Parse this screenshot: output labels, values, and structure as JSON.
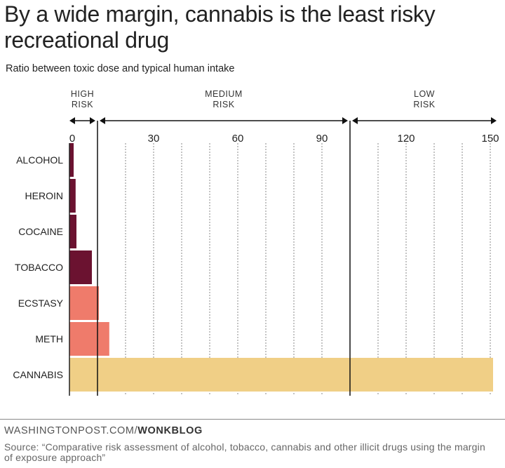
{
  "title": "By a wide margin, cannabis is the least risky recreational drug",
  "subtitle": "Ratio between toxic dose and typical human intake",
  "footer": {
    "site": "WASHINGTONPOST.COM/",
    "section": "WONKBLOG",
    "source": "Source: “Comparative risk assessment of alcohol, tobacco, cannabis and other illicit drugs using the margin of exposure approach”"
  },
  "colors": {
    "dark": "#6b1230",
    "salmon": "#ef7b6b",
    "gold": "#f0cf86",
    "text": "#222222"
  },
  "chart_data": {
    "type": "bar",
    "orientation": "horizontal",
    "title": "By a wide margin, cannabis is the least risky recreational drug",
    "subtitle": "Ratio between toxic dose and typical human intake",
    "categories": [
      "ALCOHOL",
      "HEROIN",
      "COCAINE",
      "TOBACCO",
      "ECSTASY",
      "METH",
      "CANNABIS"
    ],
    "values": [
      1.5,
      2.2,
      2.5,
      8,
      10.5,
      14.2,
      151
    ],
    "bar_colors": [
      "#6b1230",
      "#6b1230",
      "#6b1230",
      "#6b1230",
      "#ef7b6b",
      "#ef7b6b",
      "#f0cf86"
    ],
    "xlim": [
      0,
      153
    ],
    "xticks": [
      0,
      30,
      60,
      90,
      120,
      150
    ],
    "xtick_labels": [
      "0",
      "30",
      "60",
      "90",
      "120",
      "150"
    ],
    "minor_gridlines": [
      10,
      20,
      30,
      40,
      50,
      60,
      70,
      80,
      90,
      110,
      120,
      130,
      140,
      150
    ],
    "risk_thresholds": [
      10,
      100
    ],
    "risk_zones": [
      {
        "lines": [
          "HIGH",
          "RISK"
        ],
        "from": 0,
        "to": 10
      },
      {
        "lines": [
          "MEDIUM",
          "RISK"
        ],
        "from": 10,
        "to": 100
      },
      {
        "lines": [
          "LOW",
          "RISK"
        ],
        "from": 100,
        "to": 153
      }
    ],
    "xlabel": "",
    "ylabel": "",
    "grid": "vertical dotted"
  }
}
